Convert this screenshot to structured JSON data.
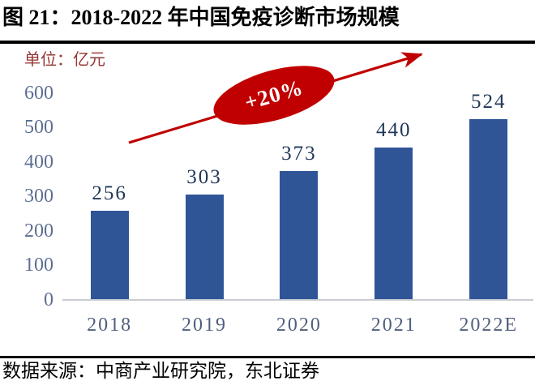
{
  "figure": {
    "title": "图 21：2018-2022 年中国免疫诊断市场规模",
    "unit_label": "单位：亿元",
    "source": "数据来源：中商产业研究院，东北证券"
  },
  "annotation": {
    "growth_label": "+20%"
  },
  "colors": {
    "bar": "#2F5597",
    "red": "#C00000",
    "dark_red": "#943634",
    "axis_label": "#5C6E93",
    "value_label": "#203758",
    "x_label": "#4F5F7E",
    "axis_line": "#C9CCD1"
  },
  "chart_data": {
    "type": "bar",
    "title": "2018-2022 年中国免疫诊断市场规模",
    "categories": [
      "2018",
      "2019",
      "2020",
      "2021",
      "2022E"
    ],
    "values": [
      256,
      303,
      373,
      440,
      524
    ],
    "xlabel": "",
    "ylabel": "亿元",
    "ylim": [
      0,
      600
    ],
    "ytick_step": 100,
    "yticks": [
      0,
      100,
      200,
      300,
      400,
      500,
      600
    ],
    "grid": false,
    "legend": false,
    "annotation_text": "+20%",
    "bar_color": "#2F5597"
  }
}
